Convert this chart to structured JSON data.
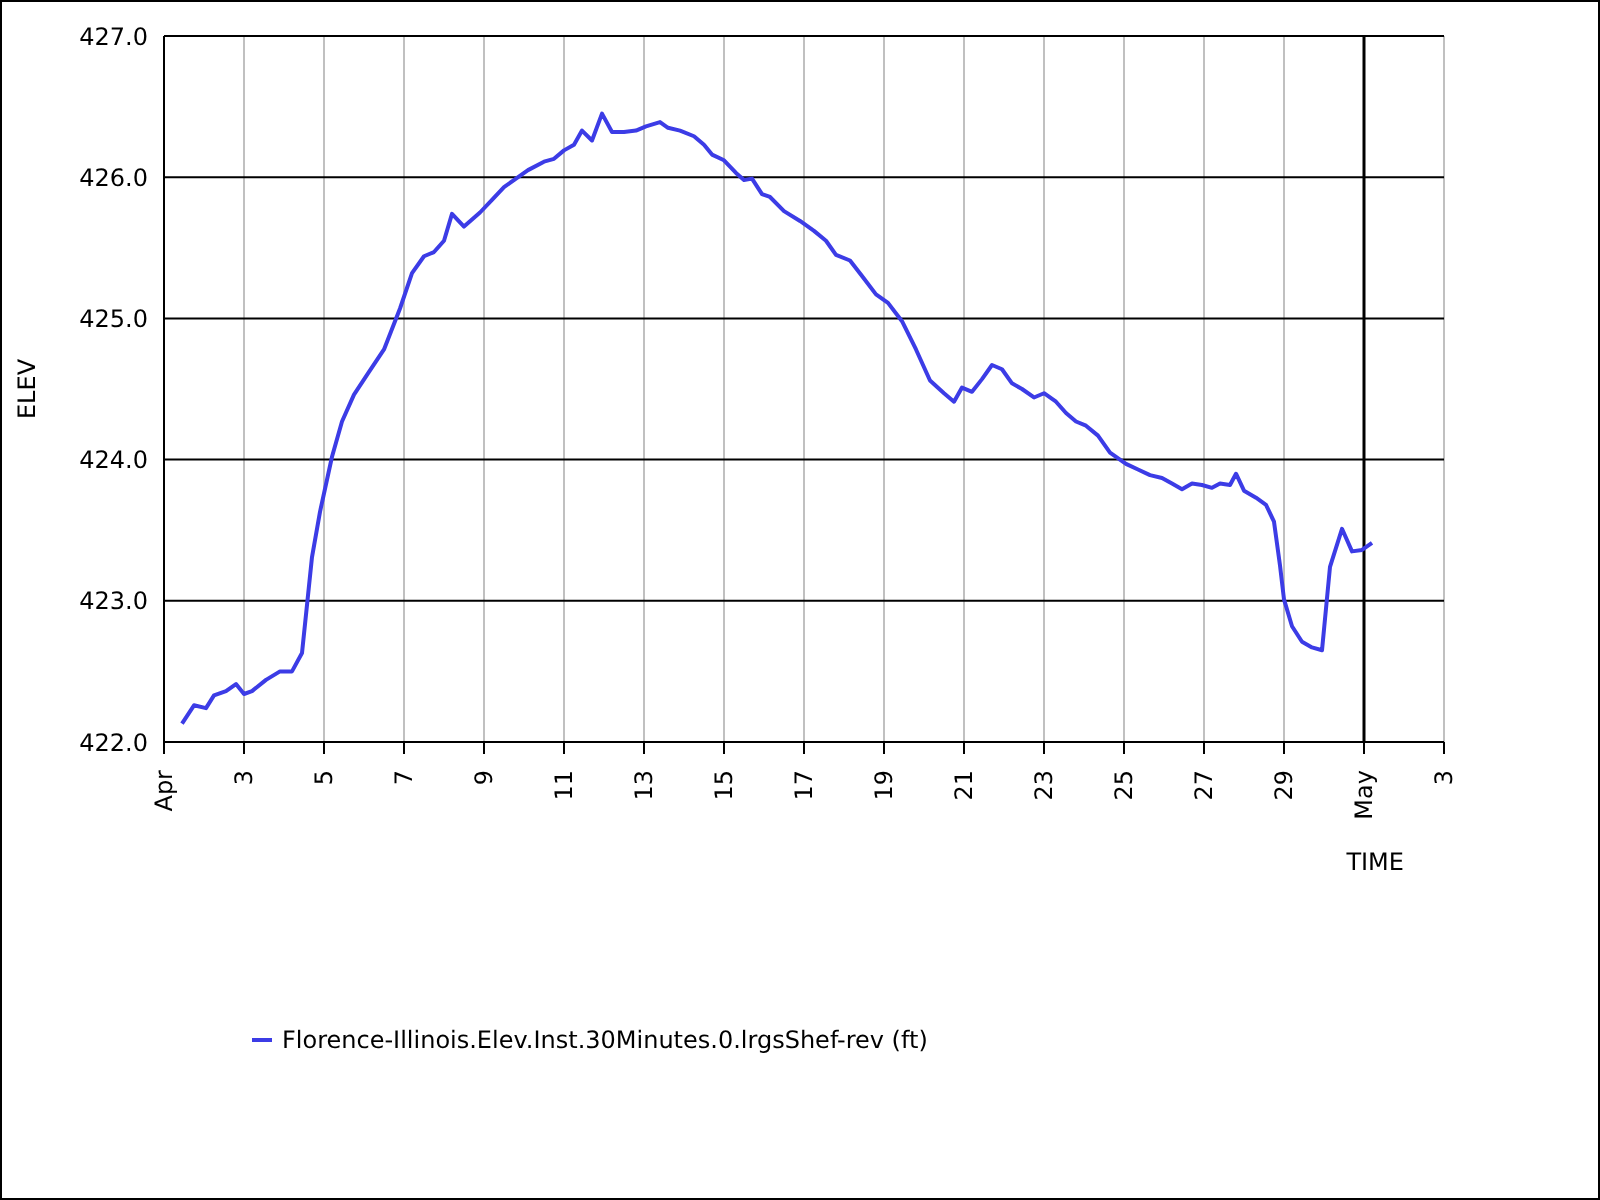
{
  "chart_data": {
    "type": "line",
    "xlabel": "TIME",
    "ylabel": "ELEV",
    "x": [
      "--04-01T10:48",
      "--04-01T18:00",
      "--04-02T01:12",
      "--04-02T06:00",
      "--04-02T13:12",
      "--04-02T19:12",
      "--04-03T00:00",
      "--04-03T04:48",
      "--04-03T13:12",
      "--04-03T21:36",
      "--04-04T04:48",
      "--04-04T10:48",
      "--04-04T16:48",
      "--04-04T21:36",
      "--04-05T04:48",
      "--04-05T10:48",
      "--04-05T18:00",
      "--04-06T02:24",
      "--04-06T12:00",
      "--04-06T21:36",
      "--04-07T04:48",
      "--04-07T12:00",
      "--04-07T18:00",
      "--04-08T00:00",
      "--04-08T04:48",
      "--04-08T12:00",
      "--04-08T21:36",
      "--04-09T04:48",
      "--04-09T12:00",
      "--04-09T19:12",
      "--04-10T02:24",
      "--04-10T12:00",
      "--04-10T18:00",
      "--04-11T00:00",
      "--04-11T06:00",
      "--04-11T10:48",
      "--04-11T16:48",
      "--04-11T22:48",
      "--04-12T04:48",
      "--04-12T12:00",
      "--04-12T19:12",
      "--04-13T01:12",
      "--04-13T09:36",
      "--04-13T14:24",
      "--04-13T21:36",
      "--04-14T06:00",
      "--04-14T12:00",
      "--04-14T16:48",
      "--04-15T00:00",
      "--04-15T07:12",
      "--04-15T12:00",
      "--04-15T16:48",
      "--04-15T22:48",
      "--04-16T03:36",
      "--04-16T12:00",
      "--04-16T21:36",
      "--04-17T06:00",
      "--04-17T13:12",
      "--04-17T19:12",
      "--04-18T03:36",
      "--04-18T10:48",
      "--04-18T19:12",
      "--04-19T02:24",
      "--04-19T10:48",
      "--04-19T19:12",
      "--04-20T03:36",
      "--04-20T12:00",
      "--04-20T18:00",
      "--04-20T22:48",
      "--04-21T04:48",
      "--04-21T10:48",
      "--04-21T16:48",
      "--04-21T22:48",
      "--04-22T04:48",
      "--04-22T10:48",
      "--04-22T18:00",
      "--04-23T00:00",
      "--04-23T07:12",
      "--04-23T13:12",
      "--04-23T19:12",
      "--04-24T01:12",
      "--04-24T08:24",
      "--04-24T15:36",
      "--04-25T01:12",
      "--04-25T08:24",
      "--04-25T15:36",
      "--04-25T22:48",
      "--04-26T04:48",
      "--04-26T10:48",
      "--04-26T16:48",
      "--04-26T22:48",
      "--04-27T04:48",
      "--04-27T09:36",
      "--04-27T15:36",
      "--04-27T19:12",
      "--04-28T00:00",
      "--04-28T07:12",
      "--04-28T13:12",
      "--04-28T18:00",
      "--04-28T21:36",
      "--04-29T00:00",
      "--04-29T04:48",
      "--04-29T10:48",
      "--04-29T16:48",
      "--04-29T22:48",
      "--04-30T03:36",
      "--04-30T10:48",
      "--04-30T16:48",
      "--04-30T22:48",
      "--05-01T04:48"
    ],
    "series": [
      {
        "name": "Florence-Illinois.Elev.Inst.30Minutes.0.lrgsShef-rev (ft)",
        "color": "#3c3ce6",
        "values": [
          422.13,
          422.26,
          422.24,
          422.33,
          422.36,
          422.41,
          422.34,
          422.36,
          422.44,
          422.5,
          422.5,
          422.63,
          423.31,
          423.63,
          424.02,
          424.27,
          424.46,
          424.61,
          424.78,
          425.07,
          425.32,
          425.44,
          425.47,
          425.55,
          425.74,
          425.65,
          425.75,
          425.84,
          425.93,
          425.99,
          426.05,
          426.11,
          426.13,
          426.19,
          426.23,
          426.33,
          426.26,
          426.45,
          426.32,
          426.32,
          426.33,
          426.36,
          426.39,
          426.35,
          426.33,
          426.29,
          426.23,
          426.16,
          426.12,
          426.03,
          425.98,
          425.99,
          425.88,
          425.86,
          425.76,
          425.69,
          425.62,
          425.55,
          425.45,
          425.41,
          425.3,
          425.17,
          425.11,
          424.98,
          424.78,
          424.56,
          424.47,
          424.41,
          424.51,
          424.48,
          424.57,
          424.67,
          424.64,
          424.54,
          424.5,
          424.44,
          424.47,
          424.41,
          424.33,
          424.27,
          424.24,
          424.17,
          424.05,
          423.97,
          423.93,
          423.89,
          423.87,
          423.83,
          423.79,
          423.83,
          423.82,
          423.8,
          423.83,
          423.82,
          423.9,
          423.78,
          423.73,
          423.68,
          423.56,
          423.25,
          423.01,
          422.82,
          422.71,
          422.67,
          422.65,
          423.24,
          423.51,
          423.35,
          423.36,
          423.41
        ]
      }
    ],
    "xlim": [
      "--04-01",
      "--05-03"
    ],
    "xticks": [
      {
        "value": "--04-01",
        "label": "Apr"
      },
      {
        "value": "--04-03",
        "label": "3"
      },
      {
        "value": "--04-05",
        "label": "5"
      },
      {
        "value": "--04-07",
        "label": "7"
      },
      {
        "value": "--04-09",
        "label": "9"
      },
      {
        "value": "--04-11",
        "label": "11"
      },
      {
        "value": "--04-13",
        "label": "13"
      },
      {
        "value": "--04-15",
        "label": "15"
      },
      {
        "value": "--04-17",
        "label": "17"
      },
      {
        "value": "--04-19",
        "label": "19"
      },
      {
        "value": "--04-21",
        "label": "21"
      },
      {
        "value": "--04-23",
        "label": "23"
      },
      {
        "value": "--04-25",
        "label": "25"
      },
      {
        "value": "--04-27",
        "label": "27"
      },
      {
        "value": "--04-29",
        "label": "29"
      },
      {
        "value": "--05-01",
        "label": "May"
      },
      {
        "value": "--05-03",
        "label": "3"
      }
    ],
    "ylim": [
      422,
      427
    ],
    "yticks": [
      {
        "value": 422,
        "label": "422.0"
      },
      {
        "value": 423,
        "label": "423.0"
      },
      {
        "value": 424,
        "label": "424.0"
      },
      {
        "value": 425,
        "label": "425.0"
      },
      {
        "value": 426,
        "label": "426.0"
      },
      {
        "value": 427,
        "label": "427.0"
      }
    ],
    "ref_lines": [
      {
        "axis": "x",
        "value": "--05-01",
        "color": "#000000"
      }
    ],
    "grid": true,
    "legend": "bottom",
    "marker": "none",
    "line_style": "solid"
  }
}
